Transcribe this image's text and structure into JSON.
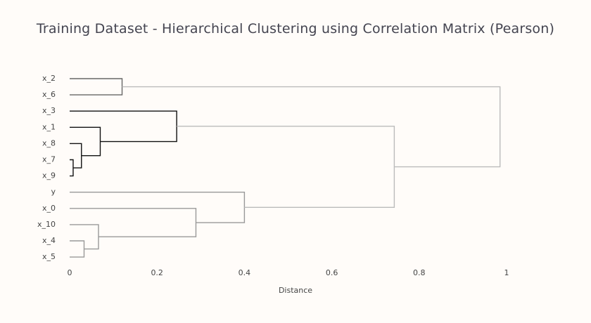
{
  "chart_data": {
    "type": "dendrogram",
    "title": "Training Dataset - Hierarchical Clustering using Correlation Matrix (Pearson)",
    "xlabel": "Distance",
    "xlim": [
      0,
      1
    ],
    "xticks": [
      0,
      0.2,
      0.4,
      0.6,
      0.8,
      1
    ],
    "xtick_labels": [
      "0",
      "0.2",
      "0.4",
      "0.6",
      "0.8",
      "1"
    ],
    "leaves": [
      "x_2",
      "x_6",
      "x_3",
      "x_1",
      "x_8",
      "x_7",
      "x_9",
      "y",
      "x_0",
      "x_10",
      "x_4",
      "x_5"
    ],
    "merges": [
      {
        "id": "m1",
        "children": [
          "x_7",
          "x_9"
        ],
        "distance": 0.008,
        "color": "#111111"
      },
      {
        "id": "m2",
        "children": [
          "x_8",
          "m1"
        ],
        "distance": 0.027,
        "color": "#111111"
      },
      {
        "id": "m3",
        "children": [
          "x_1",
          "m2"
        ],
        "distance": 0.07,
        "color": "#111111"
      },
      {
        "id": "m4",
        "children": [
          "x_3",
          "m3"
        ],
        "distance": 0.245,
        "color": "#111111"
      },
      {
        "id": "m5",
        "children": [
          "x_2",
          "x_6"
        ],
        "distance": 0.12,
        "color": "#666666"
      },
      {
        "id": "m6",
        "children": [
          "x_4",
          "x_5"
        ],
        "distance": 0.033,
        "color": "#999999"
      },
      {
        "id": "m7",
        "children": [
          "x_10",
          "m6"
        ],
        "distance": 0.066,
        "color": "#999999"
      },
      {
        "id": "m8",
        "children": [
          "x_0",
          "m7"
        ],
        "distance": 0.289,
        "color": "#999999"
      },
      {
        "id": "m9",
        "children": [
          "y",
          "m8"
        ],
        "distance": 0.4,
        "color": "#999999"
      },
      {
        "id": "m10",
        "children": [
          "m4",
          "m9"
        ],
        "distance": 0.743,
        "color": "#bbbbbb"
      },
      {
        "id": "m11",
        "children": [
          "m5",
          "m10"
        ],
        "distance": 0.985,
        "color": "#bbbbbb"
      }
    ]
  }
}
